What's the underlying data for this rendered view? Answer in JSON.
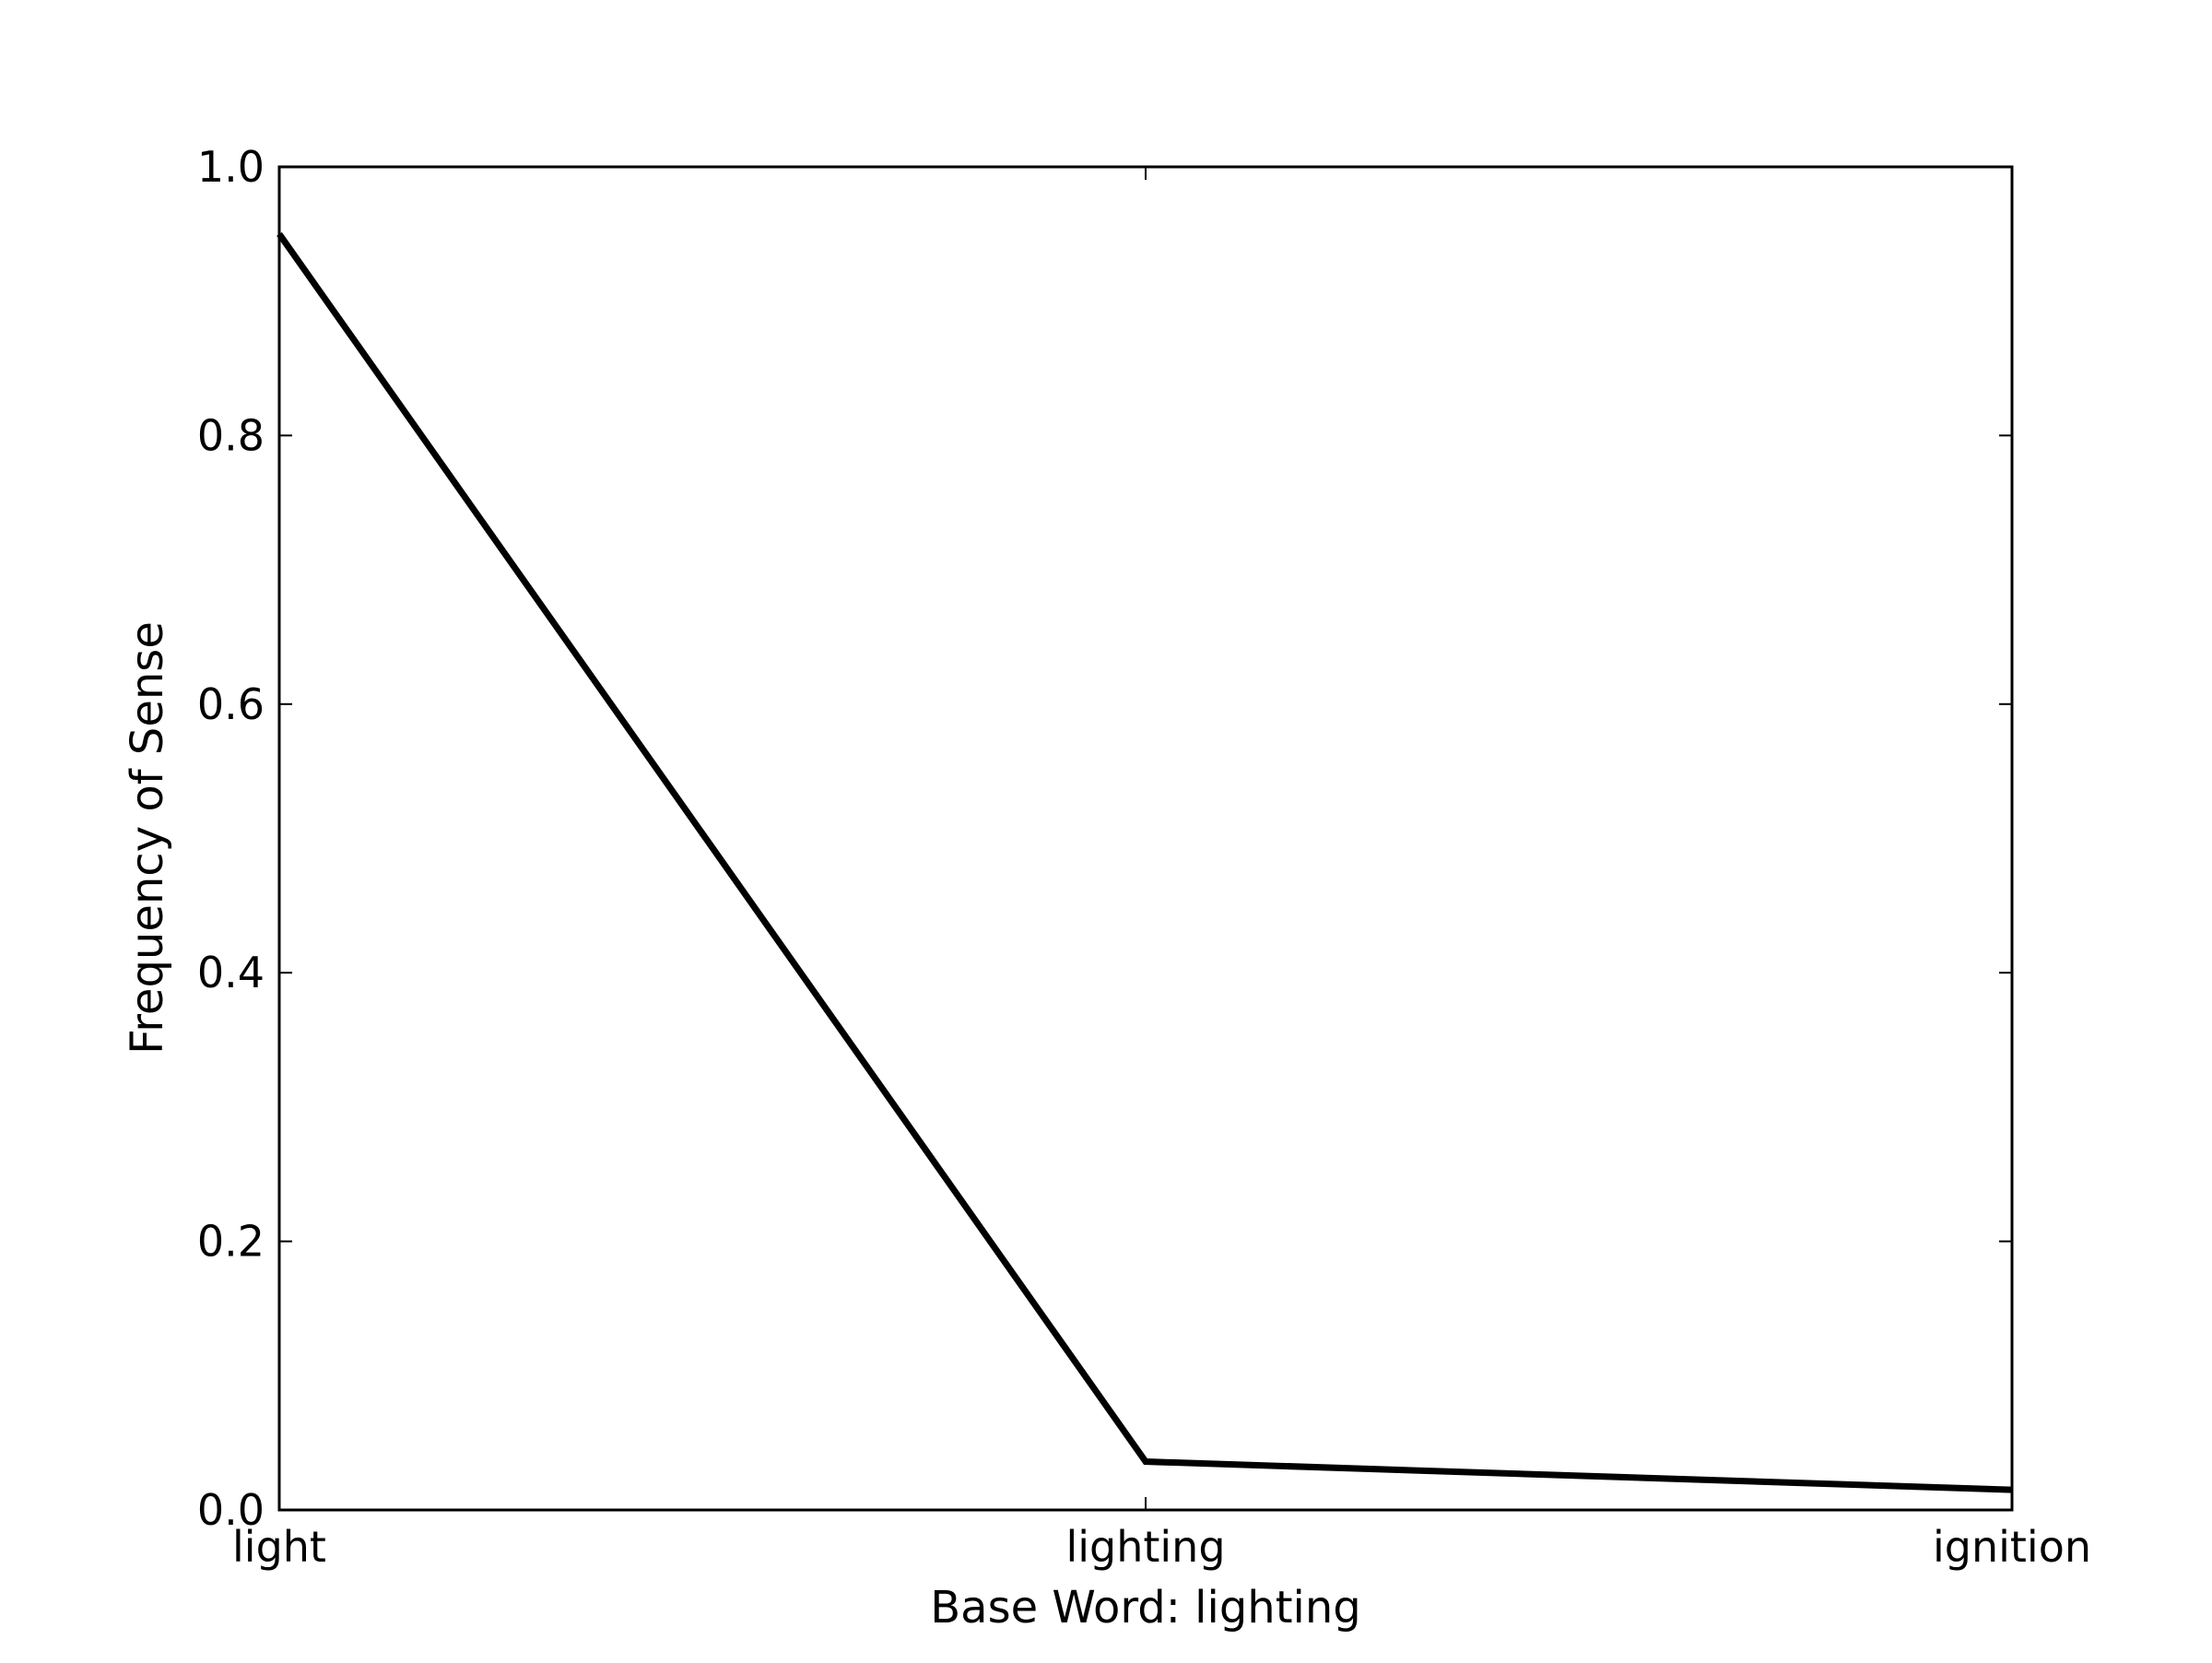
{
  "chart_data": {
    "type": "line",
    "title": "",
    "xlabel": "Base Word: lighting",
    "ylabel": "Frequency of Sense",
    "categories": [
      "light",
      "lighting",
      "ignition"
    ],
    "series": [
      {
        "values": [
          0.95,
          0.036,
          0.015
        ],
        "color": "#000000"
      }
    ],
    "ylim": [
      0.0,
      1.0
    ],
    "yticks": [
      "0.0",
      "0.2",
      "0.4",
      "0.6",
      "0.8",
      "1.0"
    ],
    "grid": false,
    "legend": "none"
  }
}
